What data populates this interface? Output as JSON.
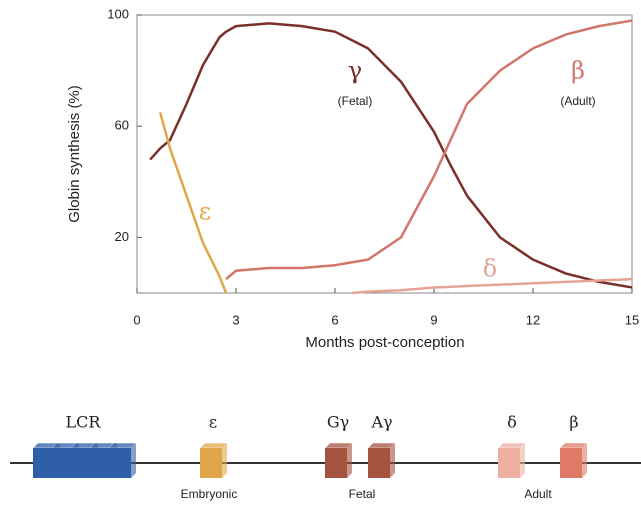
{
  "chart_data": {
    "type": "line",
    "y_label": "Globin synthesis (%)",
    "x_label": "Months post-conception",
    "x": [
      0.4,
      0.7,
      1,
      1.5,
      2,
      2.5,
      2.7,
      3,
      4,
      5,
      6,
      6.5,
      7,
      8,
      9,
      9.5,
      10,
      11,
      12,
      13,
      14,
      15
    ],
    "series": [
      {
        "name": "γ",
        "color": "#7b2f2a",
        "values": [
          48,
          52,
          55,
          68,
          82,
          92,
          94,
          96,
          97,
          96,
          94,
          91,
          88,
          76,
          58,
          46,
          35,
          20,
          12,
          7,
          4,
          2
        ]
      },
      {
        "name": "ε",
        "color": "#e2a64a",
        "values": [
          null,
          65,
          52,
          35,
          18,
          6,
          0,
          null,
          null,
          null,
          null,
          null,
          null,
          null,
          null,
          null,
          null,
          null,
          null,
          null,
          null,
          null
        ]
      },
      {
        "name": "β",
        "color": "#d2756a",
        "values": [
          null,
          null,
          null,
          null,
          null,
          null,
          5,
          8,
          9,
          9,
          10,
          11,
          12,
          20,
          42,
          55,
          68,
          80,
          88,
          93,
          96,
          98
        ]
      },
      {
        "name": "δ",
        "color": "#e6a394",
        "values": [
          null,
          null,
          null,
          null,
          null,
          null,
          null,
          null,
          null,
          null,
          null,
          0,
          0.5,
          1,
          2,
          2.2,
          2.5,
          3,
          3.5,
          4,
          4.5,
          5
        ]
      }
    ],
    "annotations": [
      "(Fetal)",
      "(Adult)"
    ],
    "xlim": [
      0,
      15
    ],
    "xticks": [
      0,
      3,
      6,
      9,
      12,
      15
    ],
    "ylim": [
      0,
      100
    ],
    "yticks": [
      20,
      60,
      100
    ],
    "grid": false
  },
  "diagram": {
    "genes": [
      {
        "label": "LCR",
        "color": "#2f5fa8"
      },
      {
        "label": "ε",
        "color": "#e2a64a"
      },
      {
        "label": "Gγ",
        "color": "#a5523f"
      },
      {
        "label": "Aγ",
        "color": "#a5523f"
      },
      {
        "label": "δ",
        "color": "#eeb0a2"
      },
      {
        "label": "β",
        "color": "#e07a68"
      }
    ],
    "groups": [
      "Embryonic",
      "Fetal",
      "Adult"
    ]
  }
}
